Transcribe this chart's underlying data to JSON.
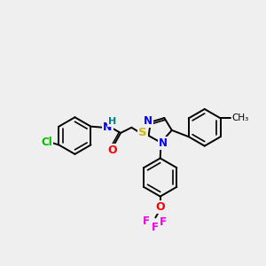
{
  "background_color": "#efefef",
  "bond_color": "#000000",
  "atom_colors": {
    "Cl": "#00bb00",
    "N": "#0000ff",
    "H": "#008080",
    "O": "#ff0000",
    "S": "#ccbb00",
    "F": "#ee00ee",
    "C": "#000000"
  },
  "figsize": [
    3.0,
    3.0
  ],
  "dpi": 100
}
